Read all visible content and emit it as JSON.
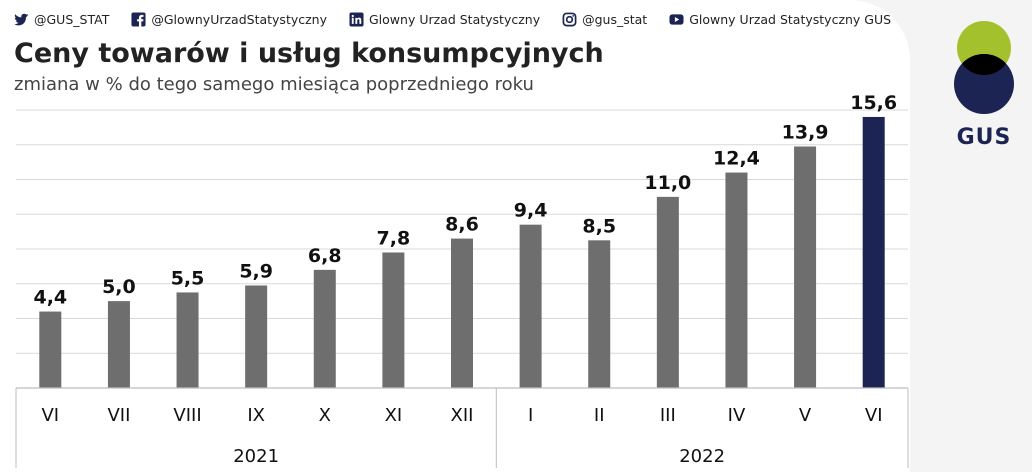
{
  "social": [
    {
      "icon": "twitter-icon",
      "label": "@GUS_STAT"
    },
    {
      "icon": "facebook-icon",
      "label": "@GlownyUrzadStatystyczny"
    },
    {
      "icon": "linkedin-icon",
      "label": "Glowny Urzad Statystyczny"
    },
    {
      "icon": "instagram-icon",
      "label": "@gus_stat"
    },
    {
      "icon": "youtube-icon",
      "label": "Glowny Urzad Statystyczny GUS"
    }
  ],
  "logo": {
    "text": "GUS",
    "colors": {
      "top": "#a3c12c",
      "bottom": "#1b2452",
      "overlap": "#000000"
    }
  },
  "colors": {
    "bar": "#6e6e6e",
    "highlight": "#1b2452",
    "grid": "#d9d9d9",
    "axis": "#bdbdbd"
  },
  "chart_data": {
    "type": "bar",
    "title": "Ceny towarów i usług konsumpcyjnych",
    "subtitle": "zmiana w % do tego samego miesiąca poprzedniego roku",
    "categories": [
      "VI",
      "VII",
      "VIII",
      "IX",
      "X",
      "XI",
      "XII",
      "I",
      "II",
      "III",
      "IV",
      "V",
      "VI"
    ],
    "values": [
      4.4,
      5.0,
      5.5,
      5.9,
      6.8,
      7.8,
      8.6,
      9.4,
      8.5,
      11.0,
      12.4,
      13.9,
      15.6
    ],
    "value_labels": [
      "4,4",
      "5,0",
      "5,5",
      "5,9",
      "6,8",
      "7,8",
      "8,6",
      "9,4",
      "8,5",
      "11,0",
      "12,4",
      "13,9",
      "15,6"
    ],
    "highlight_index": 12,
    "year_groups": [
      {
        "label": "2021",
        "start": 0,
        "end": 6
      },
      {
        "label": "2022",
        "start": 7,
        "end": 12
      }
    ],
    "ylim": [
      0,
      16
    ],
    "grid": true,
    "xlabel": "",
    "ylabel": ""
  }
}
